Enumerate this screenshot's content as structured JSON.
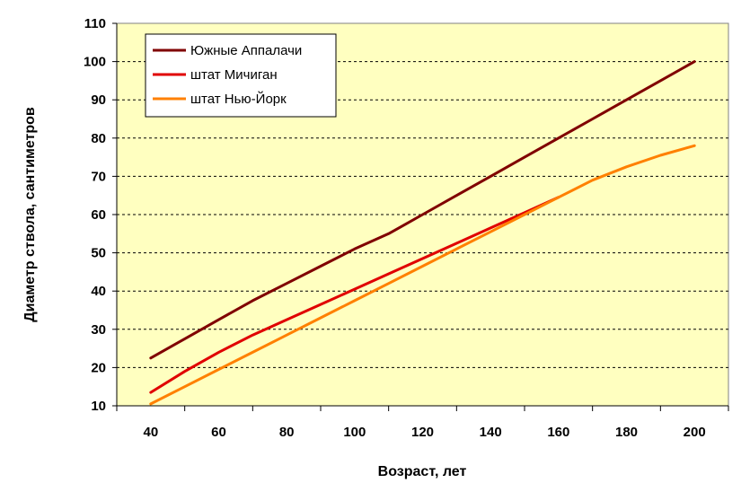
{
  "chart_data": {
    "type": "line",
    "xlabel": "Возраст, лет",
    "ylabel": "Диаметр ствола, сантиметров",
    "xlim": [
      30,
      210
    ],
    "ylim": [
      10,
      110
    ],
    "x_ticks": [
      40,
      60,
      80,
      100,
      120,
      140,
      160,
      180,
      200
    ],
    "y_ticks": [
      10,
      20,
      30,
      40,
      50,
      60,
      70,
      80,
      90,
      100,
      110
    ],
    "grid": "horizontal dashed",
    "legend_position": "top-left",
    "plot_background": "#FFFFC0",
    "series": [
      {
        "name": "Южные Аппалачи",
        "color": "#800000",
        "points": [
          [
            40,
            22.5
          ],
          [
            50,
            27.5
          ],
          [
            60,
            32.5
          ],
          [
            70,
            37.5
          ],
          [
            80,
            42
          ],
          [
            90,
            46.5
          ],
          [
            100,
            51
          ],
          [
            110,
            55
          ],
          [
            115,
            57.5
          ],
          [
            120,
            60
          ],
          [
            130,
            65
          ],
          [
            140,
            70
          ],
          [
            150,
            75
          ],
          [
            160,
            80
          ],
          [
            170,
            85
          ],
          [
            180,
            90
          ],
          [
            190,
            95
          ],
          [
            200,
            100
          ]
        ]
      },
      {
        "name": "штат Мичиган",
        "color": "#E00000",
        "points": [
          [
            40,
            13.5
          ],
          [
            50,
            19
          ],
          [
            60,
            24
          ],
          [
            70,
            28.5
          ],
          [
            80,
            32.5
          ],
          [
            90,
            36.5
          ],
          [
            100,
            40.5
          ],
          [
            110,
            44.5
          ],
          [
            120,
            48.5
          ],
          [
            130,
            52.5
          ],
          [
            140,
            56.5
          ],
          [
            150,
            60.5
          ],
          [
            160,
            64.5
          ]
        ]
      },
      {
        "name": "штат Нью-Йорк",
        "color": "#FF8000",
        "points": [
          [
            40,
            10.5
          ],
          [
            50,
            15
          ],
          [
            60,
            19.5
          ],
          [
            70,
            24
          ],
          [
            80,
            28.5
          ],
          [
            90,
            33
          ],
          [
            100,
            37.5
          ],
          [
            110,
            42
          ],
          [
            120,
            46.5
          ],
          [
            130,
            51
          ],
          [
            140,
            55.5
          ],
          [
            150,
            60
          ],
          [
            160,
            64.5
          ],
          [
            170,
            69
          ],
          [
            180,
            72.5
          ],
          [
            190,
            75.5
          ],
          [
            200,
            78
          ]
        ]
      }
    ]
  }
}
